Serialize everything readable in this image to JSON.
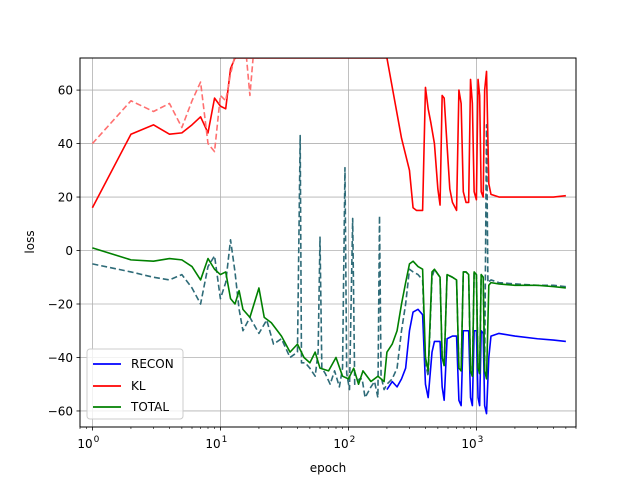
{
  "chart_data": {
    "type": "line",
    "xlabel": "epoch",
    "ylabel": "loss",
    "xscale": "log",
    "xlim": [
      0.8,
      6000
    ],
    "ylim": [
      -66,
      72
    ],
    "xticks": [
      1,
      10,
      100,
      1000
    ],
    "xtick_labels": [
      {
        "base": "10",
        "exp": "0"
      },
      {
        "base": "10",
        "exp": "1"
      },
      {
        "base": "10",
        "exp": "2"
      },
      {
        "base": "10",
        "exp": "3"
      }
    ],
    "yticks": [
      -60,
      -40,
      -20,
      0,
      20,
      40,
      60
    ],
    "ytick_labels": [
      "−60",
      "−40",
      "−20",
      "0",
      "20",
      "40",
      "60"
    ],
    "grid": true,
    "legend": {
      "position": "lower-left",
      "entries": [
        {
          "label": "RECON",
          "color": "#0000ff"
        },
        {
          "label": "KL",
          "color": "#ff0000"
        },
        {
          "label": "TOTAL",
          "color": "#008000"
        }
      ]
    },
    "series": [
      {
        "name": "RECON",
        "color": "#0000ff",
        "style": "solid",
        "points": [
          [
            200,
            -52
          ],
          [
            220,
            -49
          ],
          [
            240,
            -51
          ],
          [
            260,
            -48
          ],
          [
            280,
            -44
          ],
          [
            300,
            -30
          ],
          [
            320,
            -23
          ],
          [
            350,
            -22
          ],
          [
            380,
            -24
          ],
          [
            400,
            -50
          ],
          [
            420,
            -55
          ],
          [
            450,
            -38
          ],
          [
            470,
            -34
          ],
          [
            520,
            -34
          ],
          [
            540,
            -51
          ],
          [
            560,
            -56
          ],
          [
            590,
            -33
          ],
          [
            650,
            -32
          ],
          [
            700,
            -32
          ],
          [
            730,
            -56
          ],
          [
            760,
            -58
          ],
          [
            790,
            -30
          ],
          [
            830,
            -30
          ],
          [
            870,
            -30
          ],
          [
            900,
            -55
          ],
          [
            930,
            -58
          ],
          [
            960,
            -30
          ],
          [
            1000,
            -30
          ],
          [
            1030,
            -55
          ],
          [
            1060,
            -58
          ],
          [
            1090,
            -30
          ],
          [
            1130,
            -31
          ],
          [
            1160,
            -58
          ],
          [
            1200,
            -61
          ],
          [
            1250,
            -40
          ],
          [
            1300,
            -32
          ],
          [
            1500,
            -31
          ],
          [
            2000,
            -32
          ],
          [
            3000,
            -33
          ],
          [
            4000,
            -33.5
          ],
          [
            5000,
            -34
          ]
        ]
      },
      {
        "name": "RECON",
        "color": "#2e6b78",
        "style": "dashed",
        "points": [
          [
            1,
            -5
          ],
          [
            2,
            -8
          ],
          [
            3,
            -10
          ],
          [
            4,
            -11
          ],
          [
            5,
            -9
          ],
          [
            6,
            -14
          ],
          [
            7,
            -20
          ],
          [
            8,
            -6
          ],
          [
            9,
            -2
          ],
          [
            10,
            -18
          ],
          [
            11,
            -12
          ],
          [
            12,
            4
          ],
          [
            13,
            -8
          ],
          [
            14,
            -22
          ],
          [
            15,
            -30
          ],
          [
            17,
            -25
          ],
          [
            20,
            -31
          ],
          [
            23,
            -26
          ],
          [
            26,
            -35
          ],
          [
            30,
            -33
          ],
          [
            35,
            -40
          ],
          [
            40,
            -38
          ],
          [
            42,
            43
          ],
          [
            43,
            -42
          ],
          [
            46,
            -42
          ],
          [
            50,
            -44
          ],
          [
            55,
            -47
          ],
          [
            58,
            -38
          ],
          [
            60,
            5
          ],
          [
            62,
            -44
          ],
          [
            66,
            -46
          ],
          [
            72,
            -50
          ],
          [
            78,
            -45
          ],
          [
            85,
            -51
          ],
          [
            90,
            -44
          ],
          [
            94,
            31
          ],
          [
            97,
            -46
          ],
          [
            102,
            -52
          ],
          [
            108,
            12
          ],
          [
            112,
            -50
          ],
          [
            122,
            -48
          ],
          [
            128,
            -48
          ],
          [
            135,
            -55
          ],
          [
            150,
            -51
          ],
          [
            160,
            -49
          ],
          [
            170,
            -55
          ],
          [
            175,
            13
          ],
          [
            180,
            -47
          ],
          [
            190,
            -52
          ],
          [
            200,
            -50
          ],
          [
            220,
            -48
          ],
          [
            240,
            -44
          ],
          [
            260,
            -30
          ],
          [
            280,
            -20
          ],
          [
            300,
            -7
          ],
          [
            320,
            -8
          ],
          [
            350,
            -9
          ],
          [
            380,
            -11
          ],
          [
            400,
            -42
          ],
          [
            420,
            -47
          ],
          [
            450,
            -10
          ],
          [
            470,
            -7
          ],
          [
            520,
            -10
          ],
          [
            540,
            -40
          ],
          [
            560,
            -43
          ],
          [
            590,
            -9
          ],
          [
            650,
            -10
          ],
          [
            700,
            -11
          ],
          [
            730,
            -44
          ],
          [
            760,
            -45
          ],
          [
            790,
            -8
          ],
          [
            830,
            -8
          ],
          [
            870,
            -9
          ],
          [
            900,
            -45
          ],
          [
            930,
            -47
          ],
          [
            960,
            -8
          ],
          [
            1000,
            -9
          ],
          [
            1030,
            -44
          ],
          [
            1060,
            -46
          ],
          [
            1090,
            -9
          ],
          [
            1130,
            -10
          ],
          [
            1160,
            -45
          ],
          [
            1200,
            47
          ],
          [
            1230,
            -12
          ],
          [
            1300,
            -11
          ],
          [
            1500,
            -12
          ],
          [
            2000,
            -12.5
          ],
          [
            3000,
            -13
          ],
          [
            4000,
            -13
          ],
          [
            5000,
            -13.5
          ]
        ]
      },
      {
        "name": "KL",
        "color": "#ff0000",
        "style": "solid",
        "points": [
          [
            1,
            16
          ],
          [
            2,
            43.5
          ],
          [
            3,
            47
          ],
          [
            4,
            43.5
          ],
          [
            5,
            44
          ],
          [
            6,
            47
          ],
          [
            7,
            50
          ],
          [
            8,
            44
          ],
          [
            9,
            57
          ],
          [
            10,
            54
          ],
          [
            11,
            53
          ],
          [
            12,
            68
          ],
          [
            13,
            72
          ],
          [
            200,
            72
          ],
          [
            230,
            56
          ],
          [
            260,
            42
          ],
          [
            300,
            30
          ],
          [
            320,
            16
          ],
          [
            340,
            15
          ],
          [
            380,
            15
          ],
          [
            400,
            61
          ],
          [
            420,
            53
          ],
          [
            440,
            48
          ],
          [
            470,
            40
          ],
          [
            500,
            23
          ],
          [
            520,
            17
          ],
          [
            540,
            58
          ],
          [
            560,
            57
          ],
          [
            580,
            45
          ],
          [
            620,
            23
          ],
          [
            650,
            18
          ],
          [
            700,
            15
          ],
          [
            730,
            60
          ],
          [
            760,
            55
          ],
          [
            790,
            22
          ],
          [
            830,
            18
          ],
          [
            870,
            18
          ],
          [
            900,
            64
          ],
          [
            930,
            55
          ],
          [
            960,
            22
          ],
          [
            1000,
            19
          ],
          [
            1030,
            64
          ],
          [
            1060,
            58
          ],
          [
            1090,
            22
          ],
          [
            1130,
            20
          ],
          [
            1160,
            60
          ],
          [
            1200,
            67
          ],
          [
            1250,
            25
          ],
          [
            1300,
            21
          ],
          [
            1500,
            20
          ],
          [
            2000,
            20
          ],
          [
            3000,
            20
          ],
          [
            4000,
            20
          ],
          [
            5000,
            20.5
          ]
        ]
      },
      {
        "name": "KL",
        "color": "#ff7070",
        "style": "dashed",
        "points": [
          [
            1,
            40
          ],
          [
            2,
            56
          ],
          [
            3,
            52
          ],
          [
            4,
            55
          ],
          [
            5,
            46
          ],
          [
            6,
            56
          ],
          [
            7,
            63
          ],
          [
            8,
            40
          ],
          [
            9,
            37
          ],
          [
            10,
            58
          ],
          [
            11,
            56
          ],
          [
            12,
            66
          ],
          [
            13,
            73
          ],
          [
            16,
            72
          ],
          [
            17,
            58
          ],
          [
            18,
            72
          ],
          [
            20,
            72
          ]
        ]
      },
      {
        "name": "TOTAL",
        "color": "#008000",
        "style": "solid",
        "points": [
          [
            1,
            1
          ],
          [
            2,
            -3.5
          ],
          [
            3,
            -4
          ],
          [
            4,
            -3
          ],
          [
            5,
            -3.5
          ],
          [
            6,
            -6
          ],
          [
            7,
            -11
          ],
          [
            8,
            -3
          ],
          [
            9,
            -7
          ],
          [
            10,
            -9
          ],
          [
            11,
            -8
          ],
          [
            12,
            -18
          ],
          [
            13,
            -20
          ],
          [
            14,
            -15
          ],
          [
            15,
            -22
          ],
          [
            17,
            -25
          ],
          [
            20,
            -14
          ],
          [
            22,
            -25
          ],
          [
            25,
            -27
          ],
          [
            30,
            -32
          ],
          [
            35,
            -38
          ],
          [
            40,
            -35
          ],
          [
            45,
            -40
          ],
          [
            50,
            -42
          ],
          [
            55,
            -38
          ],
          [
            60,
            -44
          ],
          [
            70,
            -45
          ],
          [
            80,
            -40
          ],
          [
            90,
            -47
          ],
          [
            100,
            -48
          ],
          [
            110,
            -44
          ],
          [
            120,
            -50
          ],
          [
            130,
            -45
          ],
          [
            150,
            -49
          ],
          [
            170,
            -47
          ],
          [
            190,
            -49
          ],
          [
            200,
            -38
          ],
          [
            220,
            -35
          ],
          [
            240,
            -30
          ],
          [
            260,
            -20
          ],
          [
            280,
            -12
          ],
          [
            300,
            -5
          ],
          [
            320,
            -4
          ],
          [
            350,
            -6
          ],
          [
            380,
            -7
          ],
          [
            400,
            -40
          ],
          [
            420,
            -45
          ],
          [
            450,
            -8
          ],
          [
            470,
            -7
          ],
          [
            520,
            -10
          ],
          [
            540,
            -40
          ],
          [
            560,
            -43
          ],
          [
            590,
            -9
          ],
          [
            650,
            -10
          ],
          [
            700,
            -11
          ],
          [
            730,
            -44
          ],
          [
            760,
            -45
          ],
          [
            790,
            -8
          ],
          [
            830,
            -8
          ],
          [
            870,
            -9
          ],
          [
            900,
            -45
          ],
          [
            930,
            -47
          ],
          [
            960,
            -8
          ],
          [
            1000,
            -9
          ],
          [
            1030,
            -44
          ],
          [
            1060,
            -46
          ],
          [
            1090,
            -9
          ],
          [
            1130,
            -10
          ],
          [
            1160,
            -45
          ],
          [
            1200,
            -48
          ],
          [
            1250,
            -13
          ],
          [
            1300,
            -12
          ],
          [
            1500,
            -12.5
          ],
          [
            2000,
            -13
          ],
          [
            3000,
            -13
          ],
          [
            4000,
            -13.5
          ],
          [
            5000,
            -14
          ]
        ]
      }
    ]
  }
}
